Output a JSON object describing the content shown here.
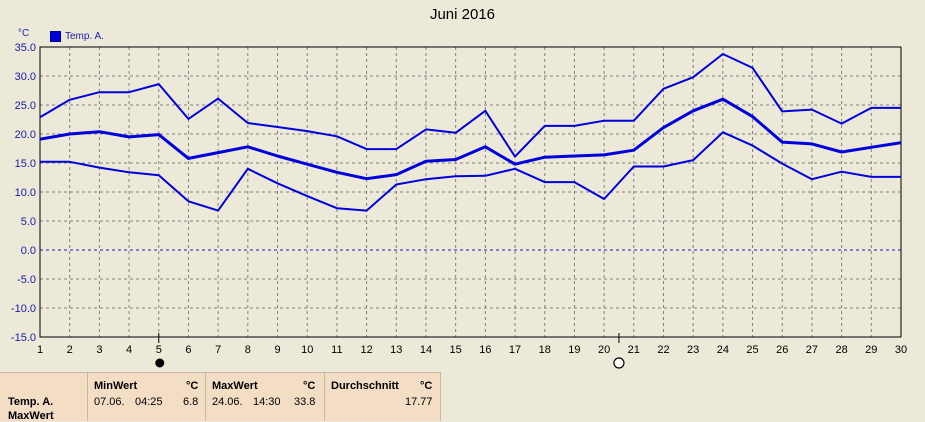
{
  "chart_data": {
    "type": "line",
    "title": "Juni 2016",
    "unit_label": "°C",
    "legend": [
      "Temp. A."
    ],
    "x": [
      1,
      2,
      3,
      4,
      5,
      6,
      7,
      8,
      9,
      10,
      11,
      12,
      13,
      14,
      15,
      16,
      17,
      18,
      19,
      20,
      21,
      22,
      23,
      24,
      25,
      26,
      27,
      28,
      29,
      30
    ],
    "ylim": [
      -15,
      35
    ],
    "yticks": [
      35.0,
      30.0,
      25.0,
      20.0,
      15.0,
      10.0,
      5.0,
      0.0,
      -5.0,
      -10.0,
      -15.0
    ],
    "ytick_labels": [
      "35.0",
      "30.0",
      "25.0",
      "20.0",
      "15.0",
      "10.0",
      "5.0",
      "0.0",
      "-5.0",
      "-10.0",
      "-15.0"
    ],
    "grid": true,
    "series": [
      {
        "name": "Temp. A.",
        "role": "max",
        "color": "#0000dd",
        "values": [
          22.9,
          25.9,
          27.2,
          27.2,
          28.6,
          22.6,
          26.1,
          21.9,
          21.2,
          20.5,
          19.6,
          17.4,
          17.4,
          20.8,
          20.2,
          24.0,
          16.1,
          21.4,
          21.4,
          22.3,
          22.3,
          27.8,
          29.8,
          33.8,
          31.4,
          23.9,
          24.2,
          21.8,
          24.5,
          24.5
        ]
      },
      {
        "name": "Temp. A.",
        "role": "avg",
        "color": "#0000dd",
        "values": [
          19.1,
          20.0,
          20.4,
          19.5,
          19.9,
          15.8,
          16.8,
          17.8,
          16.2,
          14.8,
          13.4,
          12.3,
          13.0,
          15.3,
          15.6,
          17.8,
          14.8,
          16.0,
          16.2,
          16.4,
          17.2,
          21.1,
          24.0,
          26.0,
          23.0,
          18.6,
          18.3,
          16.9,
          17.7,
          18.5
        ]
      },
      {
        "name": "Temp. A.",
        "role": "min",
        "color": "#0000dd",
        "values": [
          15.2,
          15.2,
          14.2,
          13.4,
          12.9,
          8.4,
          6.8,
          14.0,
          11.5,
          9.3,
          7.2,
          6.8,
          11.3,
          12.2,
          12.7,
          12.8,
          14.0,
          11.7,
          11.7,
          8.8,
          14.4,
          14.4,
          15.5,
          20.3,
          18.0,
          14.9,
          12.2,
          13.5,
          12.6,
          12.6
        ]
      }
    ],
    "markers": [
      {
        "x": 5,
        "symbol": "filled-circle"
      },
      {
        "x": 20.5,
        "symbol": "open-circle"
      }
    ]
  },
  "stats": {
    "row_label": "Temp. A.",
    "row_label_2": "MaxWert",
    "min": {
      "header": "MinWert",
      "unit": "°C",
      "date": "07.06.",
      "time": "04:25",
      "value": "6.8"
    },
    "max": {
      "header": "MaxWert",
      "unit": "°C",
      "date": "24.06.",
      "time": "14:30",
      "value": "33.8"
    },
    "avg": {
      "header": "Durchschnitt",
      "unit": "°C",
      "value": "17.77"
    }
  }
}
